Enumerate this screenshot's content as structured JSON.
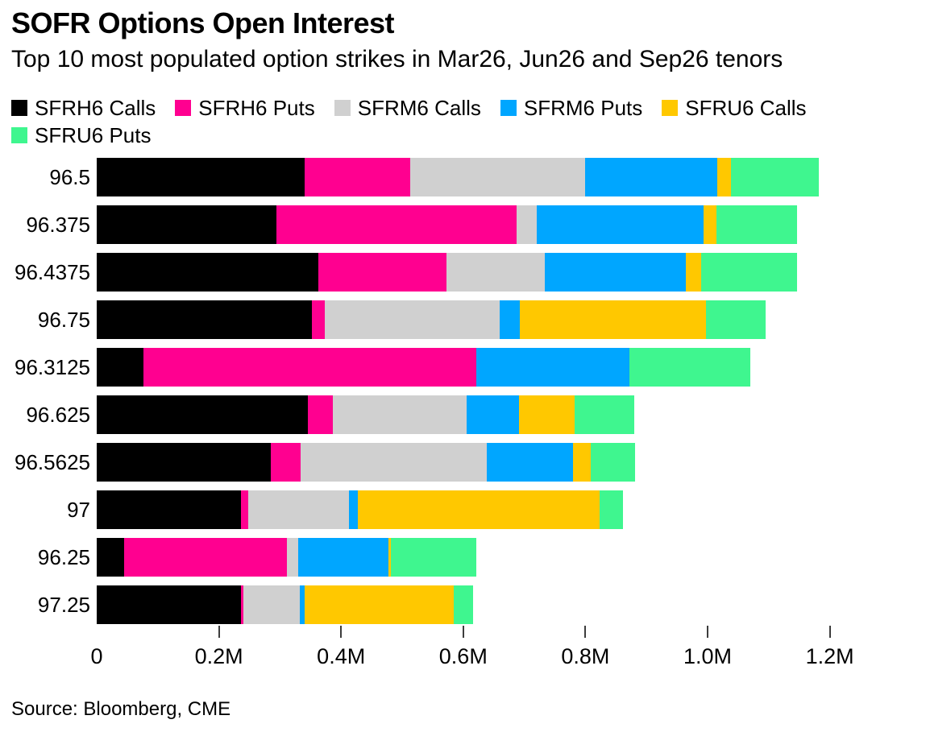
{
  "header": {
    "title": "SOFR Options Open Interest",
    "subtitle": "Top 10 most populated option strikes in Mar26, Jun26 and Sep26 tenors"
  },
  "source": "Source: Bloomberg, CME",
  "chart_data": {
    "type": "bar",
    "orientation": "horizontal",
    "stacked": true,
    "title": "SOFR Options Open Interest",
    "subtitle": "Top 10 most populated option strikes in Mar26, Jun26 and Sep26 tenors",
    "unit": "millions of contracts",
    "xlabel": "",
    "ylabel": "strike",
    "xlim": [
      0,
      1.2
    ],
    "grid": false,
    "legend_position": "top",
    "categories": [
      "96.5",
      "96.375",
      "96.4375",
      "96.75",
      "96.3125",
      "96.625",
      "96.5625",
      "97",
      "96.25",
      "97.25"
    ],
    "series": [
      {
        "name": "SFRH6 Calls",
        "color": "#000000",
        "values": [
          0.34,
          0.294,
          0.363,
          0.352,
          0.077,
          0.345,
          0.285,
          0.236,
          0.045,
          0.236
        ]
      },
      {
        "name": "SFRH6 Puts",
        "color": "#ff0090",
        "values": [
          0.173,
          0.393,
          0.21,
          0.021,
          0.545,
          0.042,
          0.049,
          0.012,
          0.267,
          0.004
        ]
      },
      {
        "name": "SFRM6 Calls",
        "color": "#d0d0d0",
        "values": [
          0.287,
          0.033,
          0.161,
          0.287,
          0.0,
          0.218,
          0.304,
          0.165,
          0.018,
          0.093
        ]
      },
      {
        "name": "SFRM6 Puts",
        "color": "#00a6ff",
        "values": [
          0.216,
          0.274,
          0.231,
          0.033,
          0.25,
          0.086,
          0.142,
          0.015,
          0.148,
          0.008
        ]
      },
      {
        "name": "SFRU6 Calls",
        "color": "#ffc800",
        "values": [
          0.022,
          0.021,
          0.025,
          0.305,
          0.0,
          0.091,
          0.029,
          0.395,
          0.003,
          0.244
        ]
      },
      {
        "name": "SFRU6 Puts",
        "color": "#3ff68f",
        "values": [
          0.144,
          0.132,
          0.157,
          0.097,
          0.198,
          0.098,
          0.072,
          0.038,
          0.141,
          0.031
        ]
      }
    ],
    "x_ticks": [
      {
        "value": 0.0,
        "label": "0"
      },
      {
        "value": 0.2,
        "label": "0.2M"
      },
      {
        "value": 0.4,
        "label": "0.4M"
      },
      {
        "value": 0.6,
        "label": "0.6M"
      },
      {
        "value": 0.8,
        "label": "0.8M"
      },
      {
        "value": 1.0,
        "label": "1.0M"
      },
      {
        "value": 1.2,
        "label": "1.2M"
      }
    ]
  }
}
